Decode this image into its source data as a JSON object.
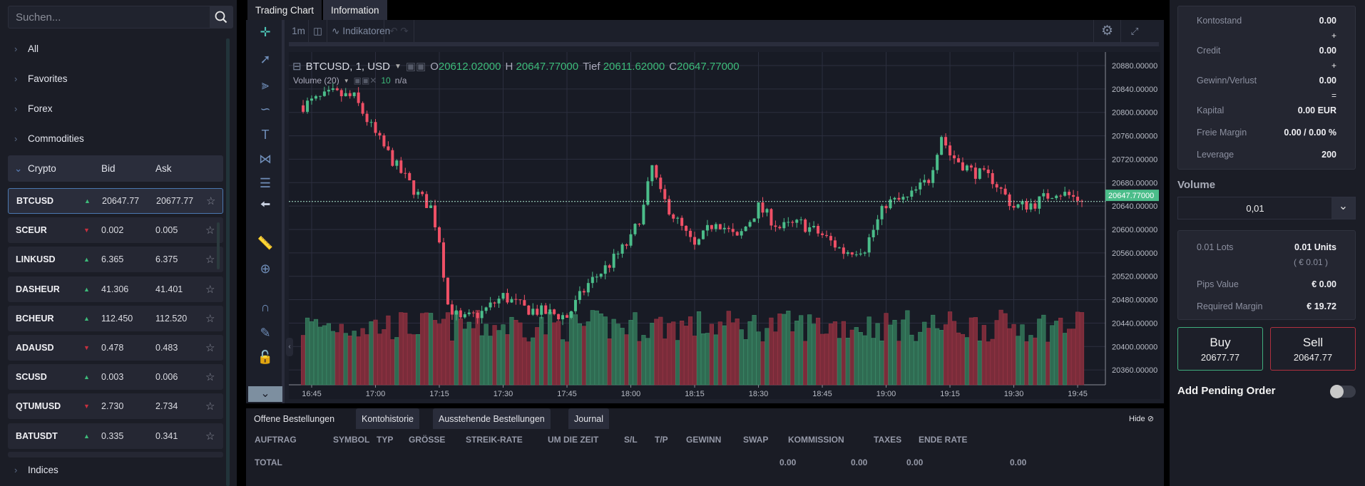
{
  "sidebar": {
    "search_placeholder": "Suchen...",
    "categories": [
      "All",
      "Favorites",
      "Forex",
      "Commodities"
    ],
    "crypto_header": {
      "label": "Crypto",
      "bid": "Bid",
      "ask": "Ask"
    },
    "instruments": [
      {
        "symbol": "BTCUSD",
        "dir": "up",
        "bid": "20647.77",
        "ask": "20677.77"
      },
      {
        "symbol": "SCEUR",
        "dir": "down",
        "bid": "0.002",
        "ask": "0.005"
      },
      {
        "symbol": "LINKUSD",
        "dir": "up",
        "bid": "6.365",
        "ask": "6.375"
      },
      {
        "symbol": "DASHEUR",
        "dir": "up",
        "bid": "41.306",
        "ask": "41.401"
      },
      {
        "symbol": "BCHEUR",
        "dir": "up",
        "bid": "112.450",
        "ask": "112.520"
      },
      {
        "symbol": "ADAUSD",
        "dir": "down",
        "bid": "0.478",
        "ask": "0.483"
      },
      {
        "symbol": "SCUSD",
        "dir": "up",
        "bid": "0.003",
        "ask": "0.006"
      },
      {
        "symbol": "QTUMUSD",
        "dir": "down",
        "bid": "2.730",
        "ask": "2.734"
      },
      {
        "symbol": "BATUSDT",
        "dir": "up",
        "bid": "0.335",
        "ask": "0.341"
      }
    ],
    "indices_label": "Indices"
  },
  "tabs": [
    "Trading Chart",
    "Information"
  ],
  "chart": {
    "toolbar": {
      "interval": "1m",
      "indicators": "Indikatoren"
    },
    "legend": {
      "title": "BTCUSD, 1, USD",
      "o_label": "O",
      "o": "20612.02000",
      "h_label": "H",
      "h": "20647.77000",
      "l_label": "Tief",
      "l": "20611.62000",
      "c_label": "C",
      "c": "20647.77000"
    },
    "volume_legend": {
      "label": "Volume (20)",
      "value": "10",
      "na": "n/a"
    },
    "last_price_label": "20647.77000",
    "last_price": 20647.77,
    "price_ticks": [
      "20880.00000",
      "20840.00000",
      "20800.00000",
      "20760.00000",
      "20720.00000",
      "20680.00000",
      "20640.00000",
      "20600.00000",
      "20560.00000",
      "20520.00000",
      "20480.00000",
      "20440.00000",
      "20400.00000",
      "20360.00000"
    ],
    "time_ticks": [
      "16:45",
      "17:00",
      "17:15",
      "17:30",
      "17:45",
      "18:00",
      "18:15",
      "18:30",
      "18:45",
      "19:00",
      "19:15",
      "19:30",
      "19:45"
    ],
    "price_path_minutes_from_1645": [
      [
        -2,
        20812
      ],
      [
        0,
        20818
      ],
      [
        5,
        20832
      ],
      [
        10,
        20825
      ],
      [
        15,
        20762
      ],
      [
        20,
        20707
      ],
      [
        25,
        20659
      ],
      [
        28,
        20638
      ],
      [
        30,
        20583
      ],
      [
        32,
        20472
      ],
      [
        35,
        20444
      ],
      [
        40,
        20458
      ],
      [
        45,
        20486
      ],
      [
        50,
        20465
      ],
      [
        55,
        20458
      ],
      [
        60,
        20451
      ],
      [
        65,
        20507
      ],
      [
        70,
        20541
      ],
      [
        75,
        20583
      ],
      [
        78,
        20638
      ],
      [
        80,
        20707
      ],
      [
        82,
        20659
      ],
      [
        85,
        20624
      ],
      [
        90,
        20569
      ],
      [
        95,
        20617
      ],
      [
        100,
        20583
      ],
      [
        105,
        20638
      ],
      [
        110,
        20603
      ],
      [
        115,
        20610
      ],
      [
        120,
        20590
      ],
      [
        125,
        20562
      ],
      [
        130,
        20569
      ],
      [
        135,
        20645
      ],
      [
        140,
        20652
      ],
      [
        145,
        20686
      ],
      [
        148,
        20762
      ],
      [
        150,
        20728
      ],
      [
        155,
        20700
      ],
      [
        160,
        20686
      ],
      [
        165,
        20638
      ],
      [
        170,
        20645
      ],
      [
        175,
        20666
      ],
      [
        180,
        20652
      ],
      [
        181,
        20647.77
      ]
    ],
    "colors": {
      "up": "#4bbd8a",
      "down": "#ef5066"
    }
  },
  "bottom": {
    "tabs": [
      "Offene Bestellungen",
      "Kontohistorie",
      "Ausstehende Bestellungen",
      "Journal"
    ],
    "hide_label": "Hide",
    "columns": [
      "AUFTRAG",
      "SYMBOL",
      "TYP",
      "GRÖSSE",
      "STREIK-RATE",
      "UM DIE ZEIT",
      "S/L",
      "T/P",
      "GEWINN",
      "SWAP",
      "KOMMISSION",
      "TAXES",
      "ENDE RATE"
    ],
    "total": {
      "label": "TOTAL",
      "gewinn": "0.00",
      "swap": "0.00",
      "kommission": "0.00",
      "taxes": "0.00"
    }
  },
  "account": {
    "kontostand": {
      "label": "Kontostand",
      "value": "0.00"
    },
    "credit": {
      "label": "Credit",
      "value": "0.00"
    },
    "gewinn": {
      "label": "Gewinn/Verlust",
      "value": "0.00"
    },
    "kapital": {
      "label": "Kapital",
      "value": "0.00 EUR"
    },
    "margin": {
      "label": "Freie Margin",
      "value": "0.00 / 0.00 %"
    },
    "leverage": {
      "label": "Leverage",
      "value": "200"
    },
    "plus": "+",
    "equals": "="
  },
  "order": {
    "volume_label": "Volume",
    "volume_value": "0,01",
    "lots": {
      "label": "0.01 Lots",
      "value": "0.01 Units",
      "sub": "( € 0.01 )"
    },
    "pips": {
      "label": "Pips Value",
      "value": "€ 0.00"
    },
    "req_margin": {
      "label": "Required Margin",
      "value": "€ 19.72"
    },
    "buy": {
      "label": "Buy",
      "price": "20677.77"
    },
    "sell": {
      "label": "Sell",
      "price": "20647.77"
    },
    "pending_label": "Add Pending Order",
    "pending_enabled": false
  }
}
